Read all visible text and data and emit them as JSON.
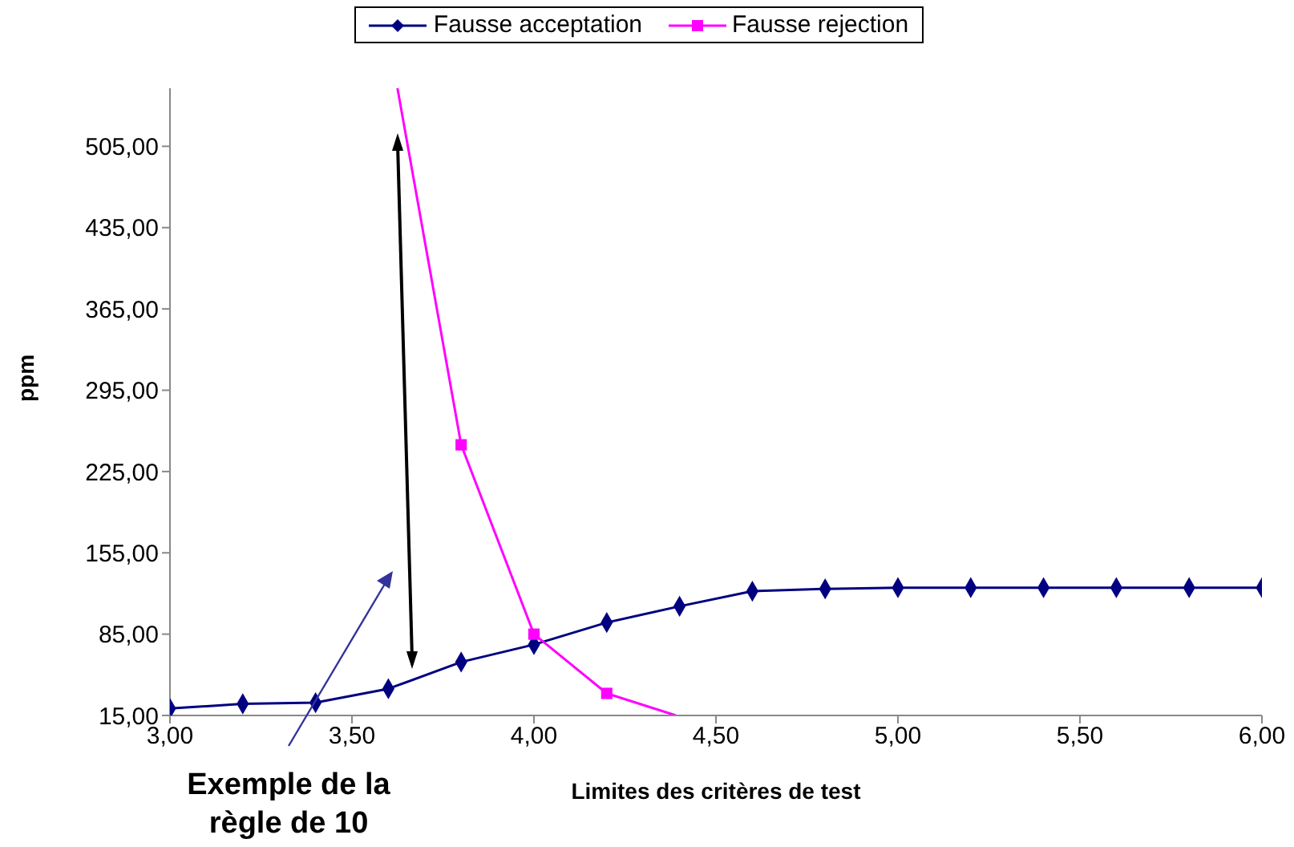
{
  "chart_data": {
    "type": "line",
    "xlabel": "Limites des critères de test",
    "ylabel": "ppm",
    "x": [
      3.0,
      3.2,
      3.4,
      3.6,
      3.8,
      4.0,
      4.2,
      4.4,
      4.6,
      4.8,
      5.0,
      5.2,
      5.4,
      5.6,
      5.8,
      6.0
    ],
    "series": [
      {
        "name": "Fausse acceptation",
        "color": "#000080",
        "marker": "diamond",
        "values": [
          21,
          25,
          26,
          38,
          61,
          76,
          95,
          109,
          122,
          124,
          125,
          125,
          125,
          125,
          125,
          125
        ]
      },
      {
        "name": "Fausse rejection",
        "color": "#ff00ff",
        "marker": "square",
        "x": [
          3.625,
          3.8,
          4.0,
          4.2,
          4.39
        ],
        "values": [
          555,
          248,
          85,
          34,
          15
        ]
      }
    ],
    "xlim": [
      3.0,
      6.0
    ],
    "xticks": [
      {
        "value": 3.0,
        "label": "3,00"
      },
      {
        "value": 3.5,
        "label": "3,50"
      },
      {
        "value": 4.0,
        "label": "4,00"
      },
      {
        "value": 4.5,
        "label": "4,50"
      },
      {
        "value": 5.0,
        "label": "5,00"
      },
      {
        "value": 5.5,
        "label": "5,50"
      },
      {
        "value": 6.0,
        "label": "6,00"
      }
    ],
    "ylim": [
      15,
      555
    ],
    "yticks": [
      {
        "value": 15,
        "label": "15,00"
      },
      {
        "value": 85,
        "label": "85,00"
      },
      {
        "value": 155,
        "label": "155,00"
      },
      {
        "value": 225,
        "label": "225,00"
      },
      {
        "value": 295,
        "label": "295,00"
      },
      {
        "value": 365,
        "label": "365,00"
      },
      {
        "value": 435,
        "label": "435,00"
      },
      {
        "value": 505,
        "label": "505,00"
      }
    ],
    "annotations": [
      "Exemple de la règle de 10"
    ],
    "legend": "top",
    "grid": false
  }
}
